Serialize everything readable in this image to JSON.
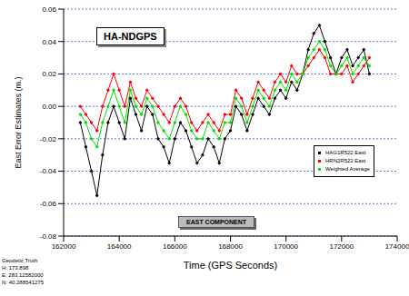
{
  "chart_data": {
    "type": "line",
    "title": "HA-NDGPS",
    "annotations": [
      "EAST COMPONENT"
    ],
    "footnote": [
      "Geodetic Truth",
      "H: 173.898",
      "E: 283.12582000",
      "N: 40.288541275"
    ],
    "x_label": "Time (GPS Seconds)",
    "y_label": "East Error Estimates (m.)",
    "x": [
      162600,
      162800,
      163000,
      163200,
      163400,
      163600,
      163800,
      164000,
      164200,
      164400,
      164600,
      164800,
      165000,
      165200,
      165400,
      165600,
      165800,
      166000,
      166200,
      166400,
      166600,
      166800,
      167000,
      167200,
      167400,
      167600,
      167800,
      168000,
      168200,
      168400,
      168600,
      168800,
      169000,
      169200,
      169400,
      169600,
      169800,
      170000,
      170200,
      170400,
      170600,
      170800,
      171000,
      171200,
      171400,
      171600,
      171800,
      172000,
      172200,
      172400,
      172600,
      172800,
      173000
    ],
    "series": [
      {
        "name": "HAG1R522 East",
        "color": "#000000",
        "marker": "dot",
        "line_style": "solid",
        "values": [
          -0.01,
          -0.025,
          -0.04,
          -0.055,
          -0.03,
          -0.01,
          0.0,
          -0.01,
          -0.02,
          0.005,
          -0.005,
          -0.015,
          0.0,
          -0.005,
          -0.02,
          -0.025,
          -0.035,
          -0.02,
          -0.01,
          -0.015,
          -0.025,
          -0.035,
          -0.03,
          -0.02,
          -0.025,
          -0.035,
          -0.02,
          -0.015,
          0.0,
          -0.005,
          -0.015,
          -0.005,
          0.005,
          0.0,
          -0.005,
          0.005,
          0.01,
          0.005,
          0.015,
          0.01,
          0.02,
          0.035,
          0.045,
          0.05,
          0.04,
          0.03,
          0.02,
          0.03,
          0.035,
          0.025,
          0.03,
          0.035,
          0.02
        ]
      },
      {
        "name": "HRN2R522 East",
        "color": "#ff0000",
        "marker": "dot",
        "line_style": "solid",
        "values": [
          0.0,
          -0.005,
          -0.01,
          -0.015,
          0.0,
          0.01,
          0.02,
          0.01,
          0.0,
          0.015,
          0.005,
          0.0,
          0.01,
          0.005,
          0.0,
          -0.005,
          -0.01,
          0.0,
          0.005,
          0.0,
          -0.01,
          -0.015,
          -0.01,
          -0.005,
          -0.01,
          -0.015,
          -0.005,
          -0.005,
          0.01,
          0.005,
          -0.005,
          0.005,
          0.015,
          0.01,
          0.005,
          0.015,
          0.02,
          0.015,
          0.025,
          0.02,
          0.02,
          0.025,
          0.03,
          0.035,
          0.03,
          0.02,
          0.02,
          0.02,
          0.025,
          0.015,
          0.02,
          0.025,
          0.03
        ]
      },
      {
        "name": "Weighted Average",
        "color": "#00e000",
        "marker": "dot",
        "line_style": "solid",
        "values": [
          -0.005,
          -0.01,
          -0.02,
          -0.025,
          -0.01,
          0.0,
          0.01,
          0.0,
          -0.01,
          0.01,
          0.0,
          -0.005,
          0.005,
          0.0,
          -0.01,
          -0.015,
          -0.02,
          -0.01,
          0.0,
          -0.005,
          -0.015,
          -0.02,
          -0.02,
          -0.01,
          -0.015,
          -0.02,
          -0.01,
          -0.01,
          0.005,
          0.0,
          -0.01,
          0.0,
          0.01,
          0.005,
          0.0,
          0.01,
          0.015,
          0.01,
          0.02,
          0.015,
          0.02,
          0.03,
          0.035,
          0.04,
          0.035,
          0.025,
          0.02,
          0.025,
          0.03,
          0.02,
          0.025,
          0.03,
          0.025
        ]
      }
    ],
    "xlim": [
      162000,
      174000
    ],
    "xticks": [
      162000,
      164000,
      166000,
      168000,
      170000,
      172000,
      174000
    ],
    "ylim": [
      -0.08,
      0.06
    ],
    "yticks": [
      -0.08,
      -0.06,
      -0.04,
      -0.02,
      {
        "value": 0,
        "label": "0.00"
      },
      0.02,
      0.04,
      0.06
    ],
    "grid": true,
    "legend": "lower right"
  }
}
